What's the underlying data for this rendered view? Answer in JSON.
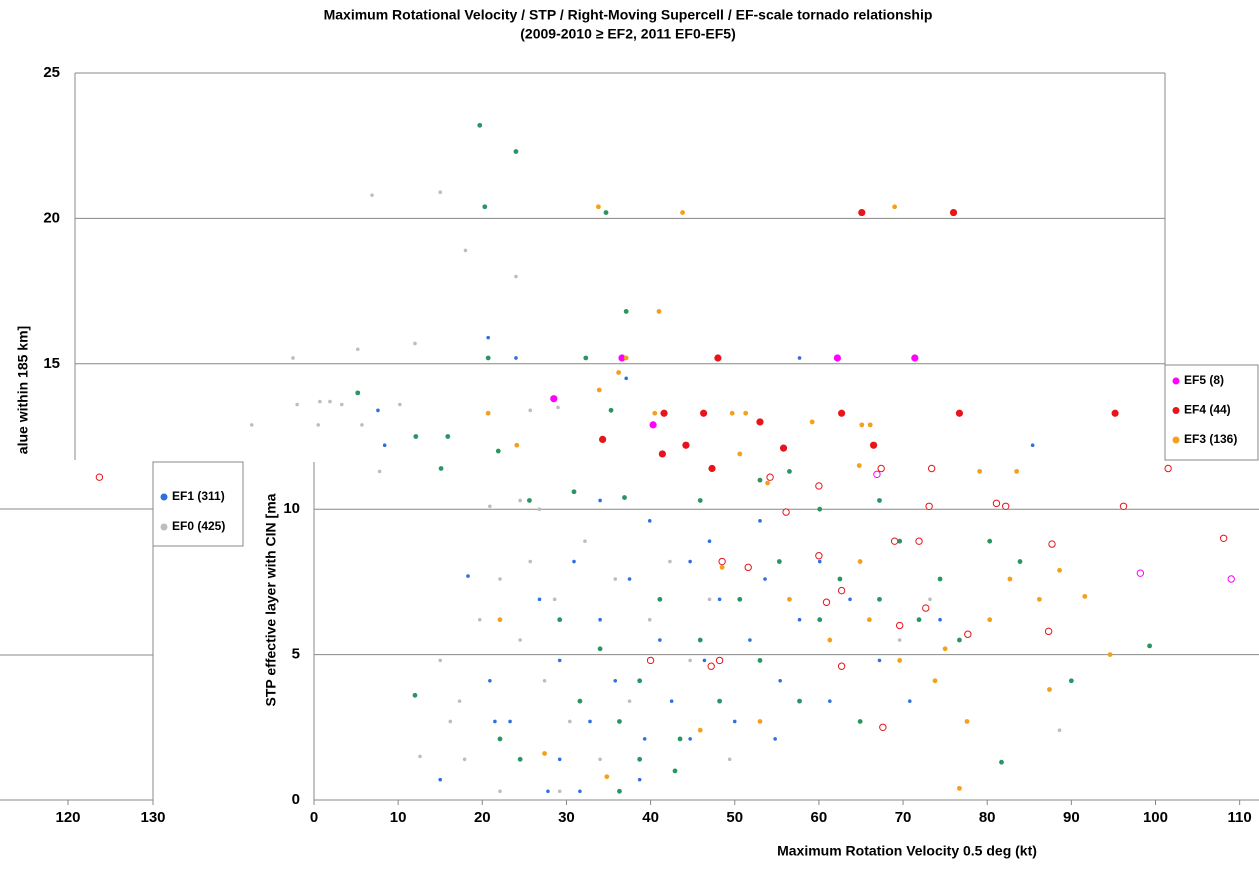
{
  "chart_data": [
    {
      "type": "scatter",
      "title": "Maximum Rotational Velocity / STP / Right-Moving Supercell / EF-scale tornado relationship",
      "subtitle": "(2009-2010 ≥ EF2, 2011 EF0-EF5)",
      "xlabel": "Maximum Rotation Velocity 0.5 deg (kt)",
      "ylabel": "STP effective layer with CIN [ma",
      "xlim": [
        -28.4,
        112.3
      ],
      "ylim": [
        0,
        25
      ],
      "xticks": [
        0,
        10,
        20,
        30,
        40,
        50,
        60,
        70,
        80,
        90,
        100,
        110
      ],
      "yticks": [
        0,
        5,
        10
      ],
      "grid": true,
      "series": [
        {
          "name": "EF5 (8)",
          "color": "#ff00ff",
          "marker": "large",
          "x": [
            28.5,
            36.6,
            40.3,
            62.2,
            71.4
          ],
          "values": [
            13.8,
            15.2,
            12.9,
            15.2,
            15.2
          ]
        },
        {
          "name": "EF4 (44)",
          "color": "#e8141b",
          "marker": "large",
          "x": [
            48.0,
            65.1,
            76.0,
            41.6,
            46.3,
            53.0,
            62.7,
            76.7,
            95.2,
            34.3,
            44.2,
            41.4,
            55.8,
            66.5,
            47.3
          ],
          "values": [
            15.2,
            20.2,
            20.2,
            13.3,
            13.3,
            13.0,
            13.3,
            13.3,
            13.3,
            12.4,
            12.2,
            11.9,
            12.1,
            12.2,
            11.4
          ]
        },
        {
          "name": "EF3 (136)",
          "color": "#f5a01a",
          "marker": "medium",
          "x": [
            33.8,
            43.8,
            69.0,
            41.0,
            37.1,
            33.9,
            36.2,
            20.7,
            24.1,
            40.5,
            49.7,
            51.3,
            59.2,
            65.1,
            66.1,
            64.8,
            53.9,
            50.6,
            48.5,
            56.5,
            61.3,
            66.0,
            69.6,
            73.8,
            77.6,
            82.7,
            86.2,
            88.6,
            91.6,
            94.6,
            87.4,
            76.7,
            27.4,
            34.8,
            45.9,
            64.9,
            79.1,
            83.5,
            75.0,
            80.3,
            53.0,
            22.1
          ],
          "values": [
            20.4,
            20.2,
            20.4,
            16.8,
            15.2,
            14.1,
            14.7,
            13.3,
            12.2,
            13.3,
            13.3,
            13.3,
            13.0,
            12.9,
            12.9,
            11.5,
            10.9,
            11.9,
            8.0,
            6.9,
            5.5,
            6.2,
            4.8,
            4.1,
            2.7,
            7.6,
            6.9,
            7.9,
            7.0,
            5.0,
            3.8,
            0.4,
            1.6,
            0.8,
            2.4,
            8.2,
            11.3,
            11.3,
            5.2,
            6.2,
            2.7,
            6.2
          ]
        },
        {
          "color": "#2a9462",
          "marker": "medium",
          "x": [
            19.7,
            24.0,
            20.3,
            34.7,
            37.1,
            20.7,
            32.3,
            5.2,
            12.1,
            15.9,
            15.1,
            21.9,
            35.3,
            25.6,
            30.9,
            36.9,
            12.0,
            29.2,
            31.6,
            34.0,
            36.3,
            38.7,
            41.1,
            43.5,
            45.9,
            48.2,
            50.6,
            53.0,
            55.3,
            57.7,
            60.1,
            62.5,
            64.9,
            67.2,
            69.6,
            71.9,
            74.4,
            76.7,
            80.3,
            83.9,
            90.0,
            99.3,
            81.7,
            22.1,
            24.5,
            36.3,
            38.7,
            53.0,
            56.5,
            60.1,
            67.2,
            45.9,
            42.9
          ],
          "values": [
            23.2,
            22.3,
            20.4,
            20.2,
            16.8,
            15.2,
            15.2,
            14.0,
            12.5,
            12.5,
            11.4,
            12.0,
            13.4,
            10.3,
            10.6,
            10.4,
            3.6,
            6.2,
            3.4,
            5.2,
            2.7,
            4.1,
            6.9,
            2.1,
            5.5,
            3.4,
            6.9,
            4.8,
            8.2,
            3.4,
            6.2,
            7.6,
            2.7,
            6.9,
            8.9,
            6.2,
            7.6,
            5.5,
            8.9,
            8.2,
            4.1,
            5.3,
            1.3,
            2.1,
            1.4,
            0.3,
            1.4,
            11.0,
            11.3,
            10.0,
            10.3,
            10.3,
            1.0
          ]
        },
        {
          "name": "EF1 (311)",
          "color": "#2f6fe0",
          "marker": "small",
          "x": [
            20.7,
            24.0,
            37.1,
            57.7,
            85.4,
            7.6,
            8.4,
            18.3,
            20.9,
            23.3,
            26.8,
            29.2,
            30.9,
            32.8,
            34.0,
            35.8,
            37.5,
            39.3,
            41.1,
            42.5,
            44.7,
            46.4,
            48.2,
            50.0,
            51.8,
            53.6,
            55.4,
            57.7,
            60.1,
            63.7,
            67.2,
            70.8,
            74.4,
            27.8,
            31.6,
            15.0,
            34.0,
            39.9,
            47.0,
            53.0,
            29.2,
            38.7,
            44.7,
            54.8,
            61.3,
            21.5
          ],
          "values": [
            15.9,
            15.2,
            14.5,
            15.2,
            12.2,
            13.4,
            12.2,
            7.7,
            4.1,
            2.7,
            6.9,
            4.8,
            8.2,
            2.7,
            6.2,
            4.1,
            7.6,
            2.1,
            5.5,
            3.4,
            8.2,
            4.8,
            6.9,
            2.7,
            5.5,
            7.6,
            4.1,
            6.2,
            8.2,
            6.9,
            4.8,
            3.4,
            6.2,
            0.3,
            0.3,
            0.7,
            10.3,
            9.6,
            8.9,
            9.6,
            1.4,
            0.7,
            2.1,
            2.1,
            3.4,
            2.7
          ]
        },
        {
          "name": "EF0 (425)",
          "color": "#bdbdbd",
          "marker": "small",
          "x": [
            6.9,
            15.0,
            18.0,
            24.0,
            -2.5,
            5.2,
            12.0,
            -2.0,
            0.7,
            1.9,
            3.3,
            10.2,
            -7.4,
            0.5,
            5.7,
            25.7,
            29.0,
            24.5,
            20.9,
            15.0,
            17.3,
            19.7,
            22.1,
            24.5,
            25.7,
            27.4,
            28.6,
            30.4,
            32.2,
            34.0,
            35.8,
            37.5,
            39.9,
            42.3,
            44.7,
            47.0,
            49.4,
            29.2,
            22.1,
            16.2,
            17.9,
            69.6,
            73.2,
            88.6,
            12.6,
            26.8,
            7.8
          ],
          "values": [
            20.8,
            20.9,
            18.9,
            18.0,
            15.2,
            15.5,
            15.7,
            13.6,
            13.7,
            13.7,
            13.6,
            13.6,
            12.9,
            12.9,
            12.9,
            13.4,
            13.5,
            10.3,
            10.1,
            4.8,
            3.4,
            6.2,
            7.6,
            5.5,
            8.2,
            4.1,
            6.9,
            2.7,
            8.9,
            1.4,
            7.6,
            3.4,
            6.2,
            8.2,
            4.8,
            6.9,
            1.4,
            0.3,
            0.3,
            2.7,
            1.4,
            5.5,
            6.9,
            2.4,
            1.5,
            10.0,
            11.3
          ]
        },
        {
          "color": "#e8141b",
          "marker": "hollow",
          "x": [
            -25.5,
            54.2,
            60.0,
            67.4,
            73.4,
            81.1,
            82.2,
            73.1,
            96.2,
            101.5,
            108.1,
            87.7,
            69.0,
            71.9,
            51.6,
            60.0,
            62.7,
            60.9,
            72.7,
            69.6,
            77.7,
            87.3,
            48.2,
            40.0,
            62.7,
            47.2,
            67.6,
            56.1,
            48.5
          ],
          "values": [
            11.1,
            11.1,
            10.8,
            11.4,
            11.4,
            10.2,
            10.1,
            10.1,
            10.1,
            11.4,
            9.0,
            8.8,
            8.9,
            8.9,
            8.0,
            8.4,
            7.2,
            6.8,
            6.6,
            6.0,
            5.7,
            5.8,
            4.8,
            4.8,
            4.6,
            4.6,
            2.5,
            9.9,
            8.2
          ]
        },
        {
          "color": "#ff00ff",
          "marker": "hollow",
          "x": [
            66.9,
            98.2,
            109.0
          ],
          "values": [
            11.2,
            7.8,
            7.6
          ]
        }
      ]
    },
    {
      "type": "axes",
      "ylabel": "alue within 185 km]",
      "xlim": [
        112,
        131
      ],
      "ylim": [
        0,
        25
      ],
      "xticks": [
        120,
        130
      ],
      "yticks": [
        15,
        20,
        25
      ]
    }
  ]
}
